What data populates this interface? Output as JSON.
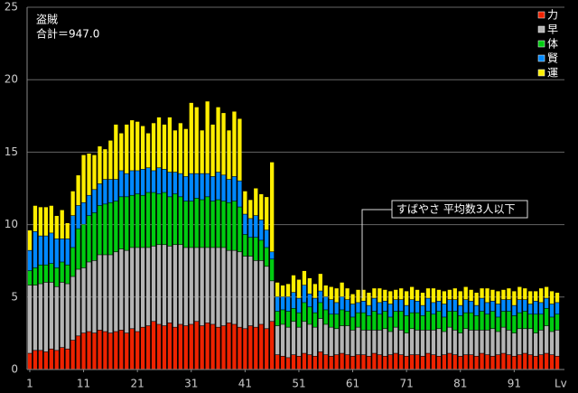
{
  "chart_data": {
    "type": "stacked_bar",
    "title": "盗賊",
    "subtitle": "合計＝947.0",
    "annotation": "すばやさ 平均数3人以下",
    "xlabel": "Lv",
    "x": [
      1,
      2,
      3,
      4,
      5,
      6,
      7,
      8,
      9,
      10,
      11,
      12,
      13,
      14,
      15,
      16,
      17,
      18,
      19,
      20,
      21,
      22,
      23,
      24,
      25,
      26,
      27,
      28,
      29,
      30,
      31,
      32,
      33,
      34,
      35,
      36,
      37,
      38,
      39,
      40,
      41,
      42,
      43,
      44,
      45,
      46,
      47,
      48,
      49,
      50,
      51,
      52,
      53,
      54,
      55,
      56,
      57,
      58,
      59,
      60,
      61,
      62,
      63,
      64,
      65,
      66,
      67,
      68,
      69,
      70,
      71,
      72,
      73,
      74,
      75,
      76,
      77,
      78,
      79,
      80,
      81,
      82,
      83,
      84,
      85,
      86,
      87,
      88,
      89,
      90,
      91,
      92,
      93,
      94,
      95,
      96,
      97,
      98,
      99
    ],
    "xlim": [
      0.5,
      99.5
    ],
    "xticks": [
      1,
      11,
      21,
      31,
      41,
      51,
      61,
      71,
      81,
      91
    ],
    "ylim": [
      0,
      25
    ],
    "yticks": [
      0,
      5,
      10,
      15,
      20,
      25
    ],
    "grid": true,
    "legend": "top-right",
    "series": [
      {
        "name": "力",
        "color": "#ee2200",
        "values": [
          1.1,
          1.3,
          1.3,
          1.2,
          1.4,
          1.3,
          1.5,
          1.4,
          2.0,
          2.3,
          2.5,
          2.6,
          2.5,
          2.7,
          2.6,
          2.5,
          2.6,
          2.7,
          2.5,
          2.8,
          2.6,
          2.9,
          3.0,
          3.3,
          3.1,
          3.0,
          3.2,
          2.9,
          3.1,
          3.0,
          3.1,
          3.3,
          3.0,
          3.2,
          3.1,
          2.9,
          3.0,
          3.2,
          3.1,
          2.9,
          2.8,
          3.0,
          2.9,
          3.1,
          2.8,
          3.3,
          1.0,
          0.9,
          0.8,
          1.0,
          0.9,
          1.1,
          1.0,
          0.9,
          1.2,
          1.0,
          0.9,
          1.0,
          1.1,
          1.0,
          0.9,
          1.0,
          1.0,
          0.9,
          1.1,
          1.0,
          0.9,
          1.0,
          1.1,
          1.0,
          0.9,
          1.0,
          1.0,
          0.9,
          1.1,
          1.0,
          0.9,
          1.0,
          1.1,
          1.0,
          0.9,
          1.0,
          1.0,
          0.9,
          1.1,
          1.0,
          0.9,
          1.0,
          1.1,
          1.0,
          0.9,
          1.0,
          1.1,
          1.0,
          0.9,
          1.0,
          1.1,
          1.0,
          0.9
        ]
      },
      {
        "name": "早",
        "color": "#b4b4b4",
        "values": [
          4.7,
          4.5,
          4.6,
          4.8,
          4.6,
          4.4,
          4.5,
          4.5,
          4.4,
          4.6,
          4.5,
          4.8,
          5.0,
          5.2,
          5.3,
          5.4,
          5.5,
          5.6,
          5.7,
          5.6,
          5.8,
          5.5,
          5.4,
          5.2,
          5.5,
          5.6,
          5.3,
          5.7,
          5.5,
          5.4,
          5.3,
          5.1,
          5.4,
          5.2,
          5.3,
          5.5,
          5.4,
          5.0,
          5.1,
          5.2,
          5.0,
          4.8,
          4.6,
          4.4,
          4.3,
          2.8,
          2.0,
          2.2,
          2.1,
          2.3,
          2.0,
          2.2,
          2.1,
          2.0,
          2.3,
          2.1,
          2.0,
          1.8,
          1.9,
          2.0,
          1.8,
          1.9,
          1.7,
          1.8,
          1.6,
          1.7,
          1.9,
          1.6,
          1.8,
          1.7,
          1.6,
          1.8,
          1.7,
          1.8,
          1.6,
          1.7,
          1.9,
          1.6,
          1.8,
          1.7,
          1.6,
          1.8,
          1.7,
          1.8,
          1.6,
          1.7,
          1.9,
          1.6,
          1.8,
          1.7,
          1.6,
          1.8,
          1.7,
          1.8,
          1.6,
          1.7,
          1.9,
          1.6,
          1.8
        ]
      },
      {
        "name": "体",
        "color": "#00cc11",
        "values": [
          1.0,
          1.2,
          1.3,
          1.2,
          1.3,
          1.3,
          1.4,
          1.3,
          2.0,
          2.8,
          3.0,
          3.2,
          3.3,
          3.4,
          3.5,
          3.6,
          3.5,
          3.6,
          3.7,
          3.6,
          3.7,
          3.6,
          3.8,
          3.7,
          3.5,
          3.6,
          3.4,
          3.5,
          3.3,
          3.2,
          3.2,
          3.4,
          3.3,
          3.5,
          3.2,
          3.3,
          3.2,
          3.3,
          3.4,
          3.1,
          1.5,
          1.3,
          1.6,
          1.4,
          1.3,
          1.5,
          1.0,
          1.0,
          1.1,
          0.9,
          1.0,
          1.3,
          1.2,
          1.0,
          1.1,
          1.0,
          0.9,
          1.0,
          1.1,
          1.0,
          0.9,
          1.0,
          1.2,
          1.0,
          1.3,
          1.1,
          1.2,
          1.0,
          1.1,
          1.3,
          1.2,
          1.1,
          1.2,
          1.0,
          1.3,
          1.1,
          1.2,
          1.0,
          1.1,
          1.3,
          1.2,
          1.1,
          1.2,
          1.0,
          1.3,
          1.1,
          1.2,
          1.0,
          1.1,
          1.3,
          1.2,
          1.1,
          1.2,
          1.0,
          1.3,
          1.1,
          1.2,
          1.0,
          1.1
        ]
      },
      {
        "name": "賢",
        "color": "#0088ff",
        "values": [
          1.4,
          2.5,
          2.0,
          2.0,
          2.1,
          2.0,
          1.6,
          1.8,
          2.2,
          1.6,
          1.5,
          1.4,
          1.6,
          1.5,
          1.7,
          1.6,
          1.5,
          1.8,
          1.6,
          1.7,
          1.6,
          1.8,
          1.7,
          1.5,
          1.8,
          1.6,
          1.7,
          1.5,
          1.6,
          1.7,
          1.9,
          1.7,
          1.8,
          1.6,
          1.7,
          1.9,
          1.8,
          1.6,
          1.7,
          1.8,
          1.4,
          1.3,
          1.5,
          1.4,
          1.2,
          0.5,
          1.0,
          0.9,
          1.0,
          1.1,
          1.0,
          1.2,
          0.9,
          1.0,
          0.8,
          0.9,
          1.0,
          0.8,
          0.9,
          0.8,
          0.9,
          0.7,
          0.8,
          0.7,
          0.9,
          0.8,
          0.7,
          0.9,
          0.8,
          0.8,
          0.7,
          0.9,
          0.8,
          0.7,
          0.9,
          0.8,
          0.7,
          0.9,
          0.8,
          0.8,
          0.7,
          0.9,
          0.8,
          0.7,
          0.9,
          0.8,
          0.7,
          0.9,
          0.8,
          0.8,
          0.7,
          0.9,
          0.8,
          0.7,
          0.9,
          0.8,
          0.7,
          0.9,
          0.8
        ]
      },
      {
        "name": "運",
        "color": "#ffee00",
        "values": [
          1.4,
          1.8,
          2.0,
          2.0,
          1.9,
          1.6,
          2.0,
          1.1,
          1.7,
          2.1,
          3.3,
          2.9,
          2.4,
          2.6,
          2.1,
          2.7,
          3.8,
          2.6,
          3.4,
          3.5,
          3.4,
          3.0,
          2.4,
          3.3,
          3.5,
          3.1,
          3.8,
          2.9,
          3.5,
          3.3,
          4.9,
          4.6,
          3.0,
          5.0,
          3.6,
          4.5,
          4.3,
          3.4,
          4.5,
          4.3,
          1.6,
          1.3,
          1.9,
          1.8,
          2.3,
          6.2,
          1.0,
          0.8,
          0.9,
          1.2,
          1.3,
          1.0,
          1.1,
          1.0,
          1.2,
          0.8,
          0.9,
          1.0,
          1.0,
          0.8,
          0.7,
          0.9,
          0.8,
          0.9,
          0.7,
          1.0,
          0.8,
          0.9,
          0.7,
          0.8,
          1.0,
          0.9,
          0.8,
          0.9,
          0.7,
          1.0,
          0.8,
          0.9,
          0.7,
          0.8,
          1.0,
          0.9,
          0.8,
          0.9,
          0.7,
          1.0,
          0.8,
          0.9,
          0.7,
          0.8,
          1.0,
          0.9,
          0.8,
          0.9,
          0.7,
          1.0,
          0.8,
          0.9,
          0.7
        ]
      }
    ]
  }
}
